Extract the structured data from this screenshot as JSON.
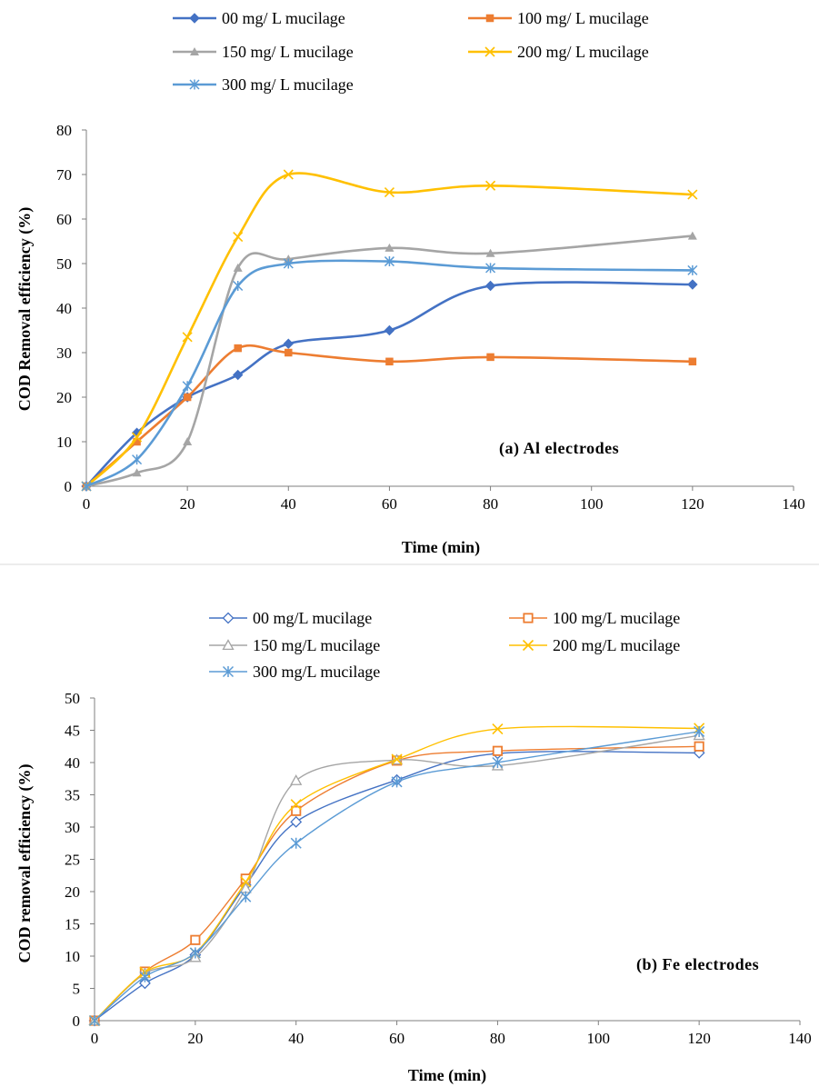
{
  "chart_data": [
    {
      "type": "line",
      "annotation": "(a) Al electrodes",
      "xlabel": "Time (min)",
      "ylabel": "COD Removal efficiency (%)",
      "xlim": [
        0,
        140
      ],
      "ylim": [
        0,
        80
      ],
      "x_ticks": [
        "0",
        "20",
        "40",
        "60",
        "80",
        "100",
        "120",
        "140"
      ],
      "y_ticks": [
        "0",
        "10",
        "20",
        "30",
        "40",
        "50",
        "60",
        "70",
        "80"
      ],
      "grid": false,
      "legend_position": "top",
      "x": [
        0,
        10,
        20,
        30,
        40,
        60,
        80,
        120
      ],
      "series": [
        {
          "name": "00 mg/ L mucilage",
          "color": "#4472C4",
          "marker": "diamond",
          "values": [
            0,
            12,
            20,
            25,
            32,
            35,
            45,
            45.3
          ]
        },
        {
          "name": "100 mg/ L mucilage",
          "color": "#ED7D31",
          "marker": "square",
          "values": [
            0,
            10,
            20,
            31,
            30,
            28,
            29,
            28
          ]
        },
        {
          "name": "150 mg/ L mucilage",
          "color": "#A5A5A5",
          "marker": "triangle",
          "values": [
            0,
            3,
            10,
            49,
            51,
            53.5,
            52.3,
            56.2
          ]
        },
        {
          "name": "200 mg/ L mucilage",
          "color": "#FFC000",
          "marker": "x",
          "values": [
            0,
            11,
            33.5,
            56,
            70,
            66,
            67.5,
            65.5
          ]
        },
        {
          "name": "300 mg/ L mucilage",
          "color": "#5B9BD5",
          "marker": "star",
          "values": [
            0,
            6,
            22.5,
            45,
            50,
            50.5,
            49,
            48.5
          ]
        }
      ]
    },
    {
      "type": "line",
      "annotation": "(b) Fe electrodes",
      "xlabel": "Time (min)",
      "ylabel": "COD removal efficiency (%)",
      "xlim": [
        0,
        140
      ],
      "ylim": [
        0,
        50
      ],
      "x_ticks": [
        "0",
        "20",
        "40",
        "60",
        "80",
        "100",
        "120",
        "140"
      ],
      "y_ticks": [
        "0",
        "5",
        "10",
        "15",
        "20",
        "25",
        "30",
        "35",
        "40",
        "45",
        "50"
      ],
      "grid": false,
      "legend_position": "top",
      "x": [
        0,
        10,
        20,
        30,
        40,
        60,
        80,
        120
      ],
      "series": [
        {
          "name": "00 mg/L mucilage",
          "color": "#4472C4",
          "marker": "diamond-open",
          "values": [
            0,
            5.8,
            10.2,
            21,
            30.8,
            37.3,
            41.4,
            41.5
          ]
        },
        {
          "name": "100 mg/L mucilage",
          "color": "#ED7D31",
          "marker": "square-open",
          "values": [
            0,
            7.6,
            12.5,
            22,
            32.5,
            40.3,
            41.8,
            42.5
          ]
        },
        {
          "name": "150 mg/L mucilage",
          "color": "#A5A5A5",
          "marker": "triangle-open",
          "values": [
            0,
            7.3,
            9.8,
            20.5,
            37.2,
            40.4,
            39.5,
            44.2
          ]
        },
        {
          "name": "200 mg/L mucilage",
          "color": "#FFC000",
          "marker": "x",
          "values": [
            0,
            7.5,
            10.5,
            21.5,
            33.5,
            40.5,
            45.2,
            45.3
          ]
        },
        {
          "name": "300 mg/L mucilage",
          "color": "#5B9BD5",
          "marker": "star",
          "values": [
            0,
            6.8,
            10.5,
            19.2,
            27.5,
            37,
            40,
            44.8
          ]
        }
      ]
    }
  ]
}
